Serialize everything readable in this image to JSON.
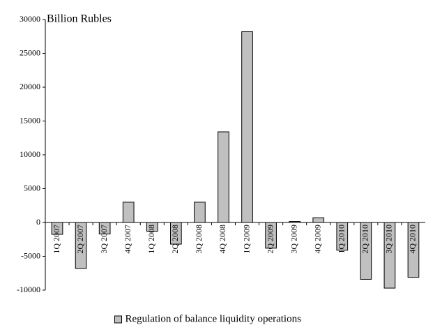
{
  "chart_data": {
    "type": "bar",
    "y_axis_label": "Billion Rubles",
    "categories": [
      "1Q 2007",
      "2Q 2007",
      "3Q 2007",
      "4Q 2007",
      "1Q 2008",
      "2Q 2008",
      "3Q 2008",
      "4Q 2008",
      "1Q 2009",
      "2Q 2009",
      "3Q 2009",
      "4Q 2009",
      "1Q 2010",
      "2Q 2010",
      "3Q 2010",
      "4Q 2010"
    ],
    "series": [
      {
        "name": "Regulation of balance liquidity operations",
        "color": "#c0c0c0",
        "values": [
          -1750,
          -6800,
          -1700,
          3000,
          -1300,
          -3200,
          3000,
          13400,
          28200,
          -3800,
          150,
          700,
          -4100,
          -8400,
          -9700,
          -8100
        ]
      }
    ],
    "ylim": [
      -10000,
      30000
    ],
    "yticks": [
      -10000,
      -5000,
      0,
      5000,
      10000,
      15000,
      20000,
      25000,
      30000
    ],
    "grid": false
  }
}
